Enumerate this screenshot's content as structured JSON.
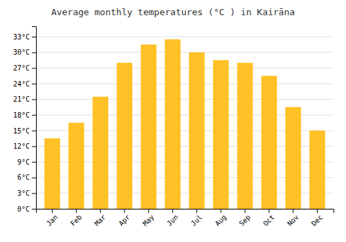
{
  "chart_data": {
    "type": "bar",
    "title": "Average monthly temperatures (°C ) in Kairāna",
    "categories": [
      "Jan",
      "Feb",
      "Mar",
      "Apr",
      "May",
      "Jun",
      "Jul",
      "Aug",
      "Sep",
      "Oct",
      "Nov",
      "Dec"
    ],
    "values": [
      13.5,
      16.5,
      21.5,
      28.0,
      31.5,
      32.5,
      30.0,
      28.5,
      28.0,
      25.5,
      19.5,
      15.0
    ],
    "color": "#FFC125",
    "ylim": [
      0,
      35
    ],
    "yticks": [
      {
        "value": 0,
        "label": "0°C"
      },
      {
        "value": 3,
        "label": "3°C"
      },
      {
        "value": 6,
        "label": "6°C"
      },
      {
        "value": 9,
        "label": "9°C"
      },
      {
        "value": 12,
        "label": "12°C"
      },
      {
        "value": 15,
        "label": "15°C"
      },
      {
        "value": 18,
        "label": "18°C"
      },
      {
        "value": 21,
        "label": "21°C"
      },
      {
        "value": 24,
        "label": "24°C"
      },
      {
        "value": 27,
        "label": "27°C"
      },
      {
        "value": 30,
        "label": "30°C"
      },
      {
        "value": 33,
        "label": "33°C"
      }
    ],
    "grid": true
  }
}
